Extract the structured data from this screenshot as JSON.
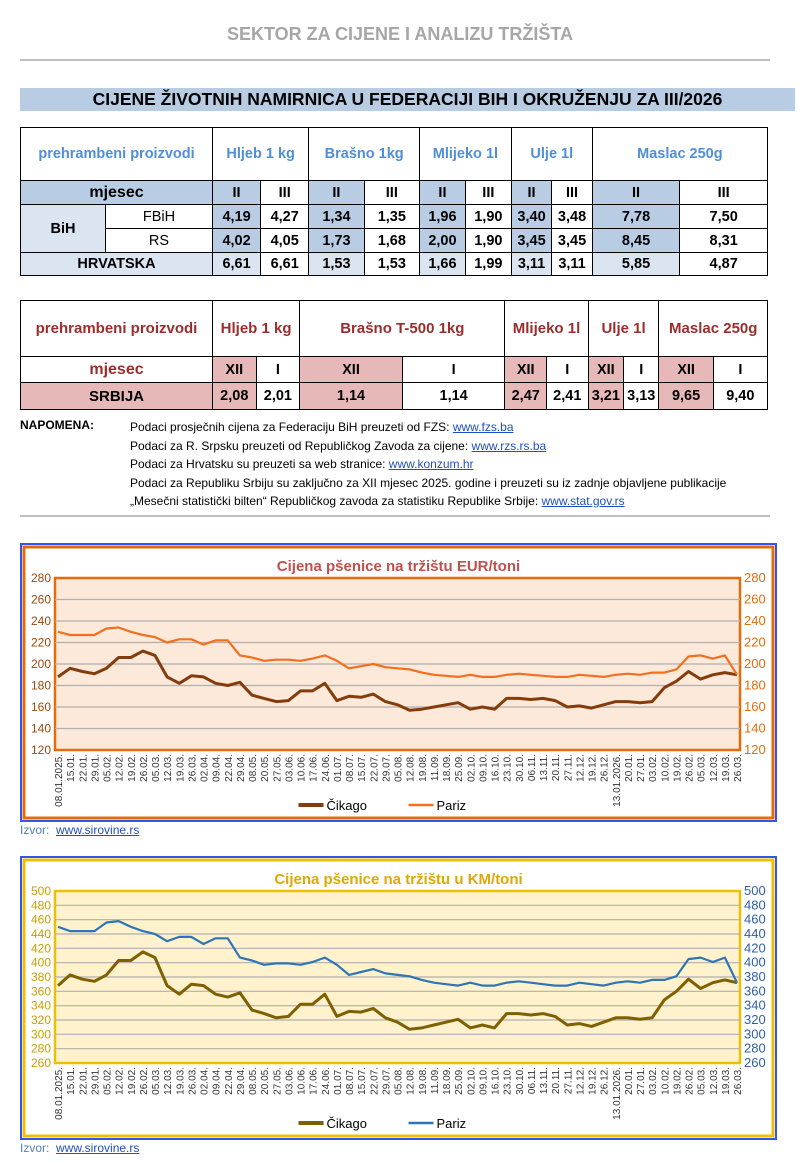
{
  "sector_title": "SEKTOR ZA CIJENE I ANALIZU TRŽIŠTA",
  "main_title": "CIJENE ŽIVOTNIH NAMIRNICA U FEDERACIJI BIH I OKRUŽENJU ZA III/2026",
  "table1": {
    "label_products": "prehrambeni proizvodi",
    "products": [
      "Hljeb 1 kg",
      "Brašno 1kg",
      "Mlijeko 1l",
      "Ulje 1l",
      "Maslac 250g"
    ],
    "label_month": "mjesec",
    "months": [
      "II",
      "III"
    ],
    "bih": "BiH",
    "rows": [
      {
        "name": "FBiH",
        "values": [
          "4,19",
          "4,27",
          "1,34",
          "1,35",
          "1,96",
          "1,90",
          "3,40",
          "3,48",
          "7,78",
          "7,50"
        ]
      },
      {
        "name": "RS",
        "values": [
          "4,02",
          "4,05",
          "1,73",
          "1,68",
          "2,00",
          "1,90",
          "3,45",
          "3,45",
          "8,45",
          "8,31"
        ]
      },
      {
        "name": "HRVATSKA",
        "values": [
          "6,61",
          "6,61",
          "1,53",
          "1,53",
          "1,66",
          "1,99",
          "3,11",
          "3,11",
          "5,85",
          "4,87"
        ]
      }
    ]
  },
  "table2": {
    "label_products": "prehrambeni proizvodi",
    "products": [
      "Hljeb 1 kg",
      "Brašno T-500 1kg",
      "Mlijeko  1l",
      "Ulje 1l",
      "Maslac 250g"
    ],
    "label_month": "mjesec",
    "months": [
      "XII",
      "I"
    ],
    "rows": [
      {
        "name": "SRBIJA",
        "values": [
          "2,08",
          "2,01",
          "1,14",
          "1,14",
          "2,47",
          "2,41",
          "3,21",
          "3,13",
          "9,65",
          "9,40"
        ]
      }
    ]
  },
  "notes": {
    "label": "NAPOMENA:",
    "lines": [
      {
        "text": "Podaci prosječnih cijena za Federaciju BiH preuzeti od  FZS: ",
        "link": "www.fzs.ba"
      },
      {
        "text": "Podaci za R. Srpsku preuzeti od Republičkog Zavoda za cijene: ",
        "link": "www.rzs.rs.ba"
      },
      {
        "text": "Podaci za Hrvatsku su preuzeti sa web stranice: ",
        "link": "www.konzum.hr"
      },
      {
        "text": "Podaci za Republiku Srbiju su zaključno za XII mjesec 2025. godine i preuzeti su iz zadnje objavljene publikacije",
        "link": ""
      },
      {
        "text": "„Mesečni statistički bilten“ Republičkog zavoda za statistiku Republike Srbije: ",
        "link": "www.stat.gov.rs"
      }
    ]
  },
  "izvor_label": "Izvor:",
  "izvor_link": "www.sirovine.rs",
  "chart_data": [
    {
      "type": "line",
      "title": "Cijena pšenice na tržištu EUR/toni",
      "ylim": [
        120,
        280
      ],
      "ystep": 20,
      "grid": true,
      "legend": "bottom",
      "colors": {
        "border": "#e46c0a",
        "bg": "#fde9d9",
        "title": "#c0504d",
        "axis": "#e46c0a",
        "leftaxis": "#9c4a0f",
        "outer": "#3355ee"
      },
      "categories": [
        "08.01.2025.",
        "15.01.",
        "22.01.",
        "29.01.",
        "05.02.",
        "12.02.",
        "19.02.",
        "26.02.",
        "05.03.",
        "12.03.",
        "19.03.",
        "26.03.",
        "02.04.",
        "09.04.",
        "22.04.",
        "29.04.",
        "08.05.",
        "20.05.",
        "27.05.",
        "03.06.",
        "10.06.",
        "17.06.",
        "24.06.",
        "01.07.",
        "08.07.",
        "15.07.",
        "22.07.",
        "29.07.",
        "05.08.",
        "12.08.",
        "19.08.",
        "11.09.",
        "18.09.",
        "25.09.",
        "02.10.",
        "09.10.",
        "16.10.",
        "23.10.",
        "30.10.",
        "06.11.",
        "13.11.",
        "20.11.",
        "27.11.",
        "12.12.",
        "19.12.",
        "26.12.",
        "13.01.2026.",
        "20.01.",
        "27.01.",
        "03.02.",
        "10.02.",
        "19.02.",
        "26.02.",
        "05.03.",
        "12.03.",
        "19.03.",
        "26.03."
      ],
      "series": [
        {
          "name": "Čikago",
          "color": "#843c0c",
          "values": [
            188,
            196,
            193,
            191,
            196,
            206,
            206,
            212,
            208,
            188,
            182,
            189,
            188,
            182,
            180,
            183,
            171,
            168,
            165,
            166,
            175,
            175,
            182,
            166,
            170,
            169,
            172,
            165,
            162,
            157,
            158,
            160,
            162,
            164,
            158,
            160,
            158,
            168,
            168,
            167,
            168,
            166,
            160,
            161,
            159,
            162,
            165,
            165,
            164,
            165,
            178,
            184,
            193,
            186,
            190,
            192,
            190
          ]
        },
        {
          "name": "Pariz",
          "color": "#f07020",
          "values": [
            230,
            227,
            227,
            227,
            233,
            234,
            230,
            227,
            225,
            220,
            223,
            223,
            218,
            222,
            222,
            208,
            206,
            203,
            204,
            204,
            203,
            205,
            208,
            203,
            196,
            198,
            200,
            197,
            196,
            195,
            192,
            190,
            189,
            188,
            190,
            188,
            188,
            190,
            191,
            190,
            189,
            188,
            188,
            190,
            189,
            188,
            190,
            191,
            190,
            192,
            192,
            195,
            207,
            208,
            205,
            208,
            190
          ]
        }
      ]
    },
    {
      "type": "line",
      "title": "Cijena pšenice na tržištu u KM/toni",
      "ylim": [
        260,
        500
      ],
      "ystep": 20,
      "grid": true,
      "legend": "bottom",
      "colors": {
        "border": "#f0c000",
        "bg": "#fff2cc",
        "title": "#e0a800",
        "axis": "#2e5fa8",
        "leftaxis": "#c9a000",
        "outer": "#3355ee"
      },
      "categories": [
        "08.01.2025.",
        "15.01.",
        "22.01.",
        "29.01.",
        "05.02.",
        "12.02.",
        "19.02.",
        "26.02.",
        "05.03.",
        "12.03.",
        "19.03.",
        "26.03.",
        "02.04.",
        "09.04.",
        "22.04.",
        "29.04.",
        "08.05.",
        "20.05.",
        "27.05.",
        "03.06.",
        "10.06.",
        "17.06.",
        "24.06.",
        "01.07.",
        "08.07.",
        "15.07.",
        "22.07.",
        "29.07.",
        "05.08.",
        "12.08.",
        "19.08.",
        "11.09.",
        "18.09.",
        "25.09.",
        "02.10.",
        "09.10.",
        "16.10.",
        "23.10.",
        "30.10.",
        "06.11.",
        "13.11.",
        "20.11.",
        "27.11.",
        "12.12.",
        "19.12.",
        "26.12.",
        "13.01.2026.",
        "20.01.",
        "27.01.",
        "03.02.",
        "10.02.",
        "19.02.",
        "26.02.",
        "05.03.",
        "12.03.",
        "19.03.",
        "26.03."
      ],
      "series": [
        {
          "name": "Čikago",
          "color": "#7f6000",
          "values": [
            368,
            383,
            377,
            374,
            383,
            403,
            403,
            415,
            407,
            368,
            356,
            370,
            368,
            356,
            352,
            358,
            334,
            329,
            323,
            325,
            342,
            342,
            356,
            325,
            332,
            331,
            336,
            323,
            317,
            307,
            309,
            313,
            317,
            321,
            309,
            313,
            309,
            329,
            329,
            327,
            329,
            325,
            313,
            315,
            311,
            317,
            323,
            323,
            321,
            323,
            348,
            360,
            377,
            364,
            372,
            376,
            372
          ]
        },
        {
          "name": "Pariz",
          "color": "#2e75b6",
          "values": [
            450,
            444,
            444,
            444,
            456,
            458,
            450,
            444,
            440,
            430,
            436,
            436,
            426,
            434,
            434,
            407,
            403,
            397,
            399,
            399,
            397,
            401,
            407,
            397,
            383,
            387,
            391,
            385,
            383,
            381,
            376,
            372,
            370,
            368,
            372,
            368,
            368,
            372,
            374,
            372,
            370,
            368,
            368,
            372,
            370,
            368,
            372,
            374,
            372,
            376,
            376,
            381,
            405,
            407,
            401,
            407,
            372
          ]
        }
      ]
    }
  ]
}
